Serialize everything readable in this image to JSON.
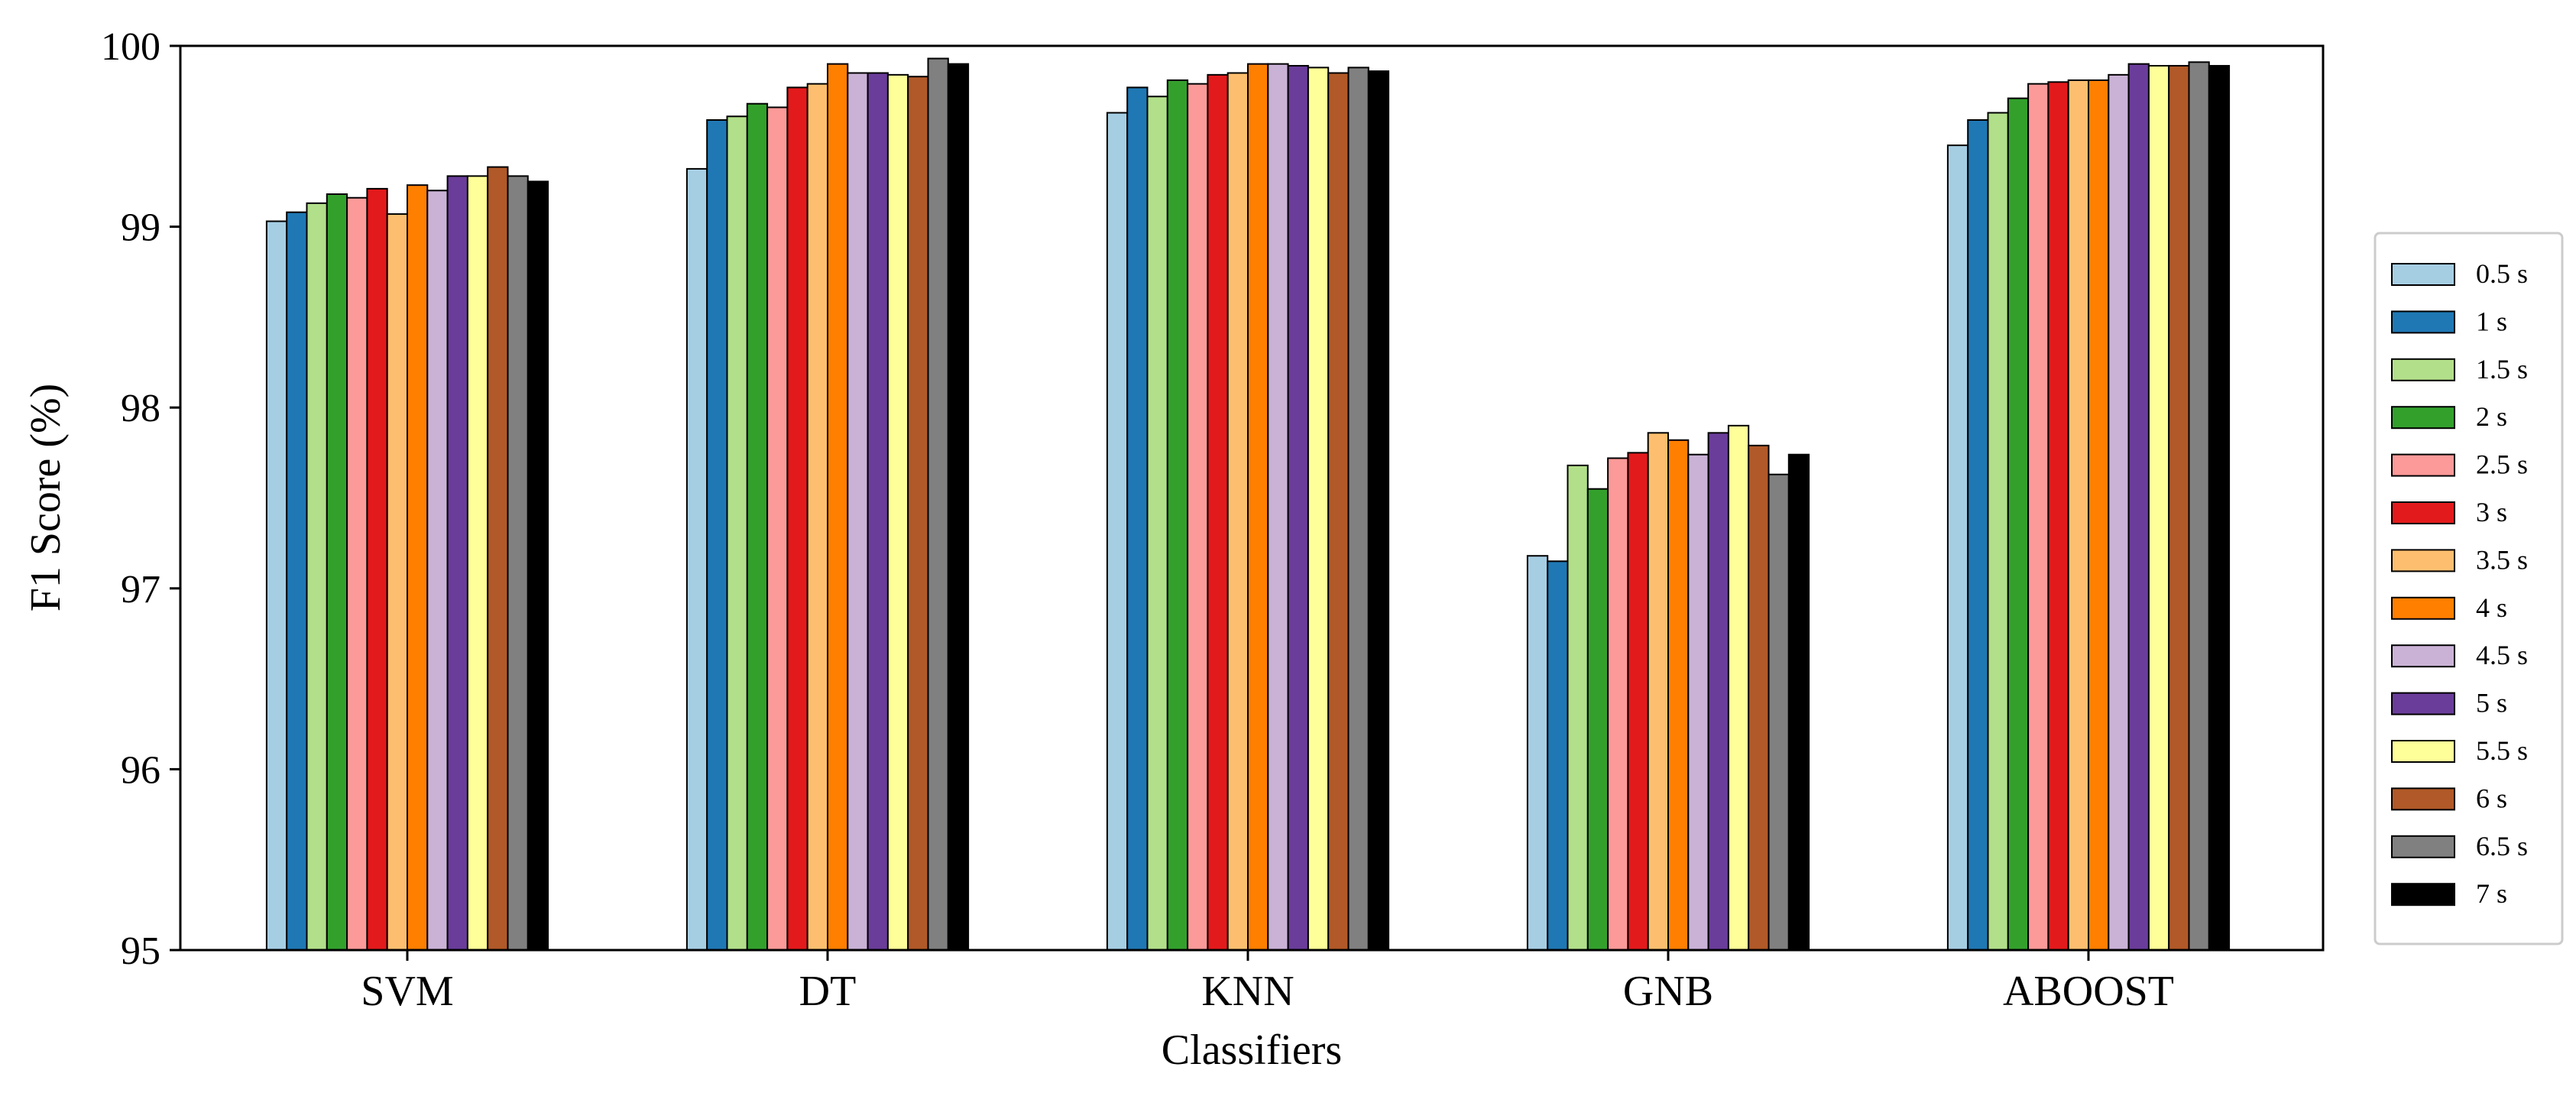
{
  "chart_data": {
    "type": "bar",
    "xlabel": "Classifiers",
    "ylabel": "F1 Score (%)",
    "ylim": [
      95,
      100
    ],
    "yticks": [
      "95",
      "96",
      "97",
      "98",
      "99",
      "100"
    ],
    "grid": false,
    "legend_position": "right",
    "categories": [
      "SVM",
      "DT",
      "KNN",
      "GNB",
      "ABOOST"
    ],
    "series": [
      {
        "name": "0.5 s",
        "color": "#a6cee3",
        "values": [
          99.03,
          99.32,
          99.63,
          97.18,
          99.45
        ]
      },
      {
        "name": "1 s",
        "color": "#1f78b4",
        "values": [
          99.08,
          99.59,
          99.77,
          97.15,
          99.59
        ]
      },
      {
        "name": "1.5 s",
        "color": "#b2df8a",
        "values": [
          99.13,
          99.61,
          99.72,
          97.68,
          99.63
        ]
      },
      {
        "name": "2 s",
        "color": "#33a02c",
        "values": [
          99.18,
          99.68,
          99.81,
          97.55,
          99.71
        ]
      },
      {
        "name": "2.5 s",
        "color": "#fb9a99",
        "values": [
          99.16,
          99.66,
          99.79,
          97.72,
          99.79
        ]
      },
      {
        "name": "3 s",
        "color": "#e31a1c",
        "values": [
          99.21,
          99.77,
          99.84,
          97.75,
          99.8
        ]
      },
      {
        "name": "3.5 s",
        "color": "#fdbf6f",
        "values": [
          99.07,
          99.79,
          99.85,
          97.86,
          99.81
        ]
      },
      {
        "name": "4 s",
        "color": "#ff7f00",
        "values": [
          99.23,
          99.9,
          99.9,
          97.82,
          99.81
        ]
      },
      {
        "name": "4.5 s",
        "color": "#cab2d6",
        "values": [
          99.2,
          99.85,
          99.9,
          97.74,
          99.84
        ]
      },
      {
        "name": "5 s",
        "color": "#6a3d9a",
        "values": [
          99.28,
          99.85,
          99.89,
          97.86,
          99.9
        ]
      },
      {
        "name": "5.5 s",
        "color": "#ffff99",
        "values": [
          99.28,
          99.84,
          99.88,
          97.9,
          99.89
        ]
      },
      {
        "name": "6 s",
        "color": "#b15928",
        "values": [
          99.33,
          99.83,
          99.85,
          97.79,
          99.89
        ]
      },
      {
        "name": "6.5 s",
        "color": "#808080",
        "values": [
          99.28,
          99.93,
          99.88,
          97.63,
          99.91
        ]
      },
      {
        "name": "7 s",
        "color": "#000000",
        "values": [
          99.25,
          99.9,
          99.86,
          97.74,
          99.89
        ]
      }
    ]
  }
}
